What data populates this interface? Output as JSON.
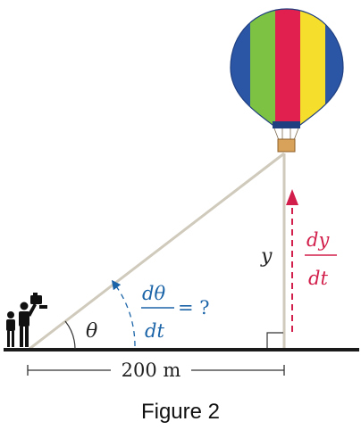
{
  "labels": {
    "y_var": "y",
    "theta": "θ",
    "dtheta_num": "dθ",
    "dtheta_den": "dt",
    "dtheta_eq": "= ?",
    "dy_num": "dy",
    "dy_den": "dt",
    "distance": "200 m",
    "caption": "Figure 2"
  },
  "colors": {
    "rope_line": "#cfcabb",
    "ground": "#1a1a1a",
    "blue_accent": "#1b64a8",
    "red_accent": "#d21e4a",
    "balloon_blue": "#2b56a6",
    "balloon_green": "#7dc242",
    "balloon_red": "#e2204f",
    "balloon_yellow": "#f6de2c",
    "basket": "#d8a25a"
  },
  "icons": {
    "balloon": "hot-air-balloon-icon",
    "observers": "people-with-camera-icon"
  }
}
